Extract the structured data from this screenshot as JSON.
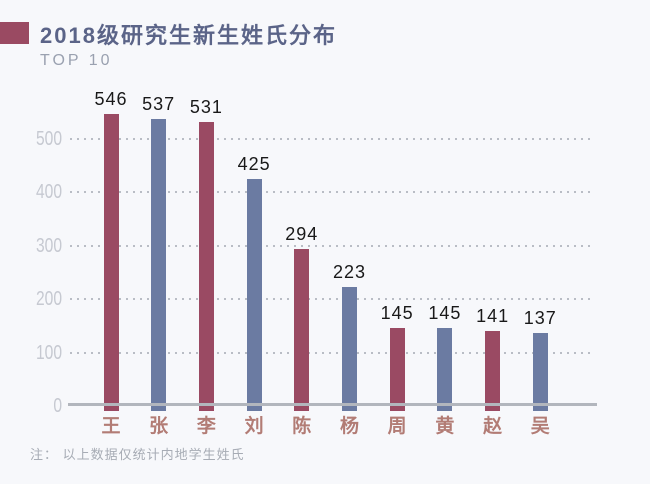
{
  "page": {
    "background": "#f7f8fb"
  },
  "header": {
    "title": "2018级研究生新生姓氏分布",
    "subtitle": "TOP 10",
    "accent_color": "#9a4a62",
    "title_color": "#5b6488"
  },
  "footnote": "注： 以上数据仅统计内地学生姓氏",
  "chart_data": {
    "type": "bar",
    "title": "2018级研究生新生姓氏分布",
    "subtitle": "TOP 10",
    "categories": [
      "王",
      "张",
      "李",
      "刘",
      "陈",
      "杨",
      "周",
      "黄",
      "赵",
      "吴"
    ],
    "values": [
      546,
      537,
      531,
      425,
      294,
      223,
      145,
      145,
      141,
      137
    ],
    "bar_colors": [
      "#9a4a63",
      "#6b7ba2"
    ],
    "ylim": [
      0,
      550
    ],
    "yticks": [
      0,
      100,
      200,
      300,
      400,
      500
    ],
    "grid": "dotted-horizontal",
    "axis_line_color": "#b2b6bd",
    "gridline_color": "#b9bdc5",
    "ytick_label_color": "#c6c9d1",
    "value_label_color": "#191919",
    "category_label_color": "#b27c75",
    "legend_position": "none",
    "xlabel": "",
    "ylabel": ""
  }
}
